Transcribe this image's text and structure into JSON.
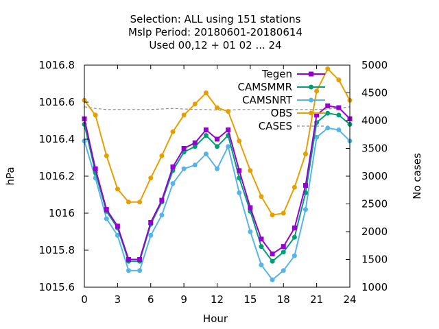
{
  "chart_data": {
    "type": "line",
    "title_lines": [
      "Selection: ALL using   151 stations",
      "Mslp   Period: 20180601-20180614",
      "Used  00,12  + 01 02 ... 24"
    ],
    "xlabel": "Hour",
    "ylabel": "hPa",
    "y2label": "No cases",
    "xlim": [
      0,
      24
    ],
    "ylim": [
      1015.6,
      1016.8
    ],
    "y2lim": [
      1000,
      5000
    ],
    "x_ticks": [
      0,
      3,
      6,
      9,
      12,
      15,
      18,
      21,
      24
    ],
    "y_ticks": [
      1015.6,
      1015.8,
      1016,
      1016.2,
      1016.4,
      1016.6,
      1016.8
    ],
    "y_tick_labels": [
      "1015.6",
      "1015.8",
      "1016",
      "1016.2",
      "1016.4",
      "1016.6",
      "1016.8"
    ],
    "y2_ticks": [
      1000,
      1500,
      2000,
      2500,
      3000,
      3500,
      4000,
      4500,
      5000
    ],
    "legend_position": "top-right",
    "grid": false,
    "x": [
      0,
      1,
      2,
      3,
      4,
      5,
      6,
      7,
      8,
      9,
      10,
      11,
      12,
      13,
      14,
      15,
      16,
      17,
      18,
      19,
      20,
      21,
      22,
      23,
      24
    ],
    "series": [
      {
        "name": "Tegen",
        "color": "#9400d3",
        "marker": "filled-square",
        "axis": "y",
        "values": [
          1016.51,
          1016.24,
          1016.02,
          1015.93,
          1015.75,
          1015.75,
          1015.95,
          1016.07,
          1016.25,
          1016.35,
          1016.38,
          1016.45,
          1016.4,
          1016.45,
          1016.23,
          1016.03,
          1015.86,
          1015.78,
          1015.82,
          1015.92,
          1016.15,
          1016.53,
          1016.58,
          1016.57,
          1016.51
        ]
      },
      {
        "name": "CAMSMMR",
        "color": "#009e73",
        "marker": "filled-circle",
        "axis": "y",
        "values": [
          1016.48,
          1016.22,
          1016.01,
          1015.92,
          1015.74,
          1015.74,
          1015.94,
          1016.06,
          1016.23,
          1016.33,
          1016.36,
          1016.42,
          1016.36,
          1016.42,
          1016.19,
          1016.01,
          1015.82,
          1015.74,
          1015.79,
          1015.87,
          1016.11,
          1016.49,
          1016.54,
          1016.53,
          1016.48
        ]
      },
      {
        "name": "CAMSNRT",
        "color": "#56b4e9",
        "marker": "filled-circle",
        "axis": "y",
        "values": [
          1016.39,
          1016.19,
          1015.97,
          1015.88,
          1015.69,
          1015.69,
          1015.88,
          1015.99,
          1016.16,
          1016.24,
          1016.26,
          1016.32,
          1016.24,
          1016.36,
          1016.11,
          1015.9,
          1015.72,
          1015.64,
          1015.69,
          1015.77,
          1016.02,
          1016.41,
          1016.46,
          1016.45,
          1016.39
        ]
      },
      {
        "name": "OBS",
        "color": "#e69f00",
        "marker": "filled-circle",
        "axis": "y",
        "values": [
          1016.61,
          1016.53,
          1016.31,
          1016.13,
          1016.06,
          1016.06,
          1016.19,
          1016.31,
          1016.44,
          1016.53,
          1016.59,
          1016.65,
          1016.57,
          1016.55,
          1016.39,
          1016.23,
          1016.09,
          1015.99,
          1016.0,
          1016.14,
          1016.32,
          1016.66,
          1016.78,
          1016.72,
          1016.61
        ]
      },
      {
        "name": "CASES",
        "color": "#888888",
        "marker": "none",
        "dash": true,
        "axis": "y2",
        "values": [
          4250,
          4220,
          4200,
          4200,
          4200,
          4200,
          4200,
          4210,
          4220,
          4210,
          4200,
          4200,
          4190,
          4190,
          4200,
          4200,
          4200,
          4200,
          4200,
          4200,
          4200,
          4200,
          4210,
          4220,
          4250
        ]
      }
    ]
  }
}
